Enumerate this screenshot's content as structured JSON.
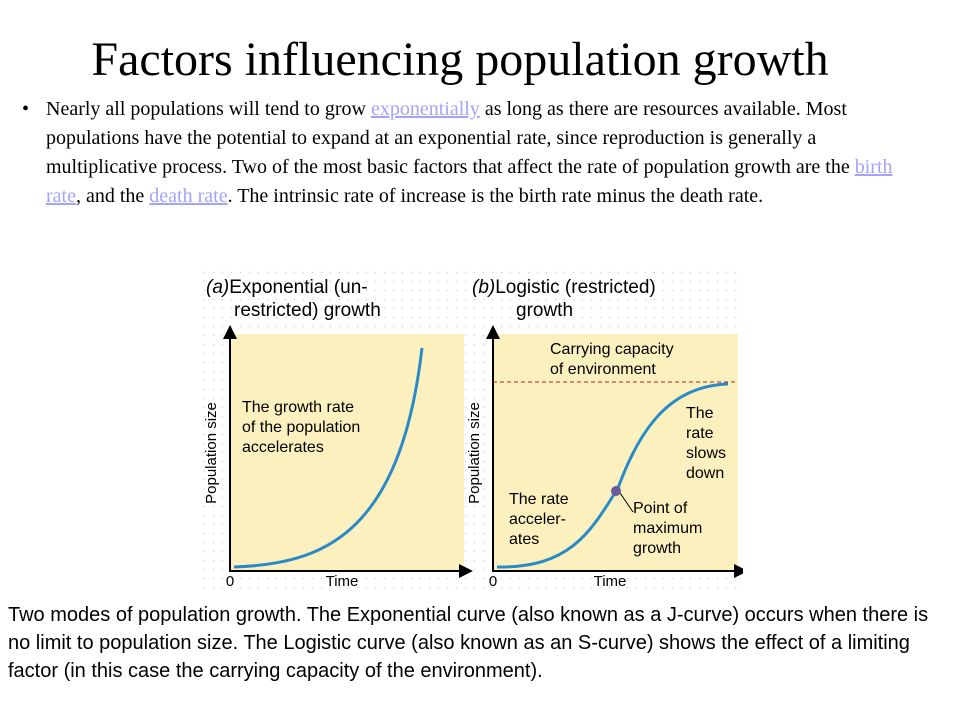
{
  "slide": {
    "title": "Factors influencing population growth",
    "bullet": {
      "symbol": "•",
      "seg1": "Nearly all populations will tend to grow ",
      "link1": "exponentially",
      "seg2": " as long as there are resources available. Most populations have the potential to expand at an exponential rate, since reproduction is generally a multiplicative process. Two of the most basic factors that affect the rate of population growth are the ",
      "link2": "birth rate",
      "seg3": ", and the ",
      "link3": "death rate",
      "seg4": ". The intrinsic rate of increase is the birth rate minus the death rate."
    },
    "caption": "Two modes of population growth. The Exponential curve (also known as a J-curve) occurs when there is no limit to population size. The Logistic curve (also known as an S-curve) shows the effect of a limiting factor (in this case the carrying capacity of the environment)."
  },
  "figure": {
    "panel_a": {
      "label_letter": "(a)",
      "title_line1": "Exponential (un-",
      "title_line2": "restricted) growth",
      "ylabel": "Population size",
      "xlabel": "Time",
      "origin": "0",
      "note_lines": [
        "The growth rate",
        "of the population",
        "accelerates"
      ]
    },
    "panel_b": {
      "label_letter": "(b)",
      "title_line1": "Logistic (restricted)",
      "title_line2": "growth",
      "ylabel": "Population size",
      "xlabel": "Time",
      "origin": "0",
      "capacity_lines": [
        "Carrying capacity",
        "of environment"
      ],
      "slows_lines": [
        "The",
        "rate",
        "slows",
        "down"
      ],
      "accel_lines": [
        "The rate",
        "acceler-",
        "ates"
      ],
      "point_lines": [
        "Point of",
        "maximum",
        "growth"
      ]
    },
    "colors": {
      "panel_fill": "#fcf1be",
      "curve": "#2a8ac8",
      "capacity_line": "#b22222",
      "point": "#6a5a9a",
      "axis": "#000000"
    }
  }
}
